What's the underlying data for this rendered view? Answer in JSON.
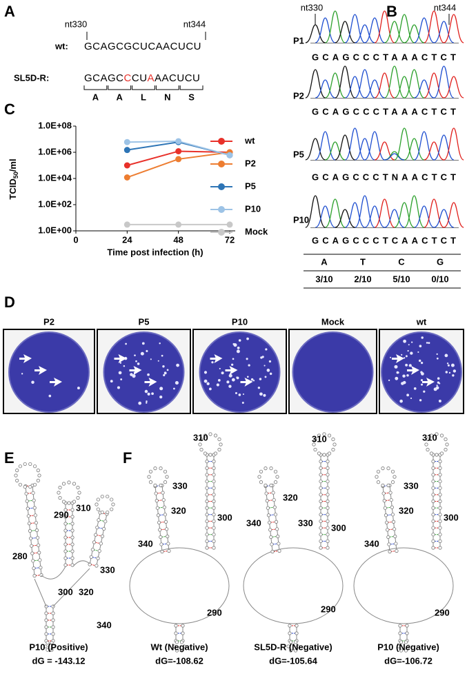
{
  "panel_a": {
    "label": "A",
    "nt_start": "nt330",
    "nt_end": "nt344",
    "wt_label": "wt:",
    "wt_seq": "GCAGCGCUCAACUCU",
    "mut_label": "SL5D-R:",
    "mut_seq": [
      {
        "text": "GCAGC",
        "color": "#000000"
      },
      {
        "text": "C",
        "color": "#e8312a"
      },
      {
        "text": "CU",
        "color": "#000000"
      },
      {
        "text": "A",
        "color": "#e8312a"
      },
      {
        "text": "AACUCU",
        "color": "#000000"
      }
    ],
    "codons": [
      "A",
      "A",
      "L",
      "N",
      "S"
    ]
  },
  "panel_b": {
    "label": "B",
    "nt_start": "nt330",
    "nt_end": "nt344",
    "traces": [
      {
        "name": "P1",
        "seq": "GCAGCCCTAAACTCT"
      },
      {
        "name": "P2",
        "seq": "GCAGCCCTAAACTCT"
      },
      {
        "name": "P5",
        "seq": "GCAGCCCTNAACTCT"
      },
      {
        "name": "P10",
        "seq": "GCAGCCCTCAACTCT"
      }
    ],
    "table": {
      "header": [
        "A",
        "T",
        "C",
        "G"
      ],
      "values": [
        "3/10",
        "2/10",
        "5/10",
        "0/10"
      ]
    }
  },
  "chart_data": {
    "type": "line",
    "label": "C",
    "xlabel": "Time post infection (h)",
    "ylabel": {
      "main": "TCID",
      "sub": "50",
      "rest": "/ml"
    },
    "x": [
      24,
      48,
      72
    ],
    "xlim": [
      0,
      72
    ],
    "xticks": [
      0,
      24,
      48,
      72
    ],
    "log_y": true,
    "ylim": [
      1,
      100000000
    ],
    "yticks": [
      {
        "value": 1,
        "label": "1.0E+00"
      },
      {
        "value": 100,
        "label": "1.0E+02"
      },
      {
        "value": 10000,
        "label": "1.0E+04"
      },
      {
        "value": 1000000,
        "label": "1.0E+06"
      },
      {
        "value": 100000000,
        "label": "1.0E+08"
      }
    ],
    "series": [
      {
        "name": "wt",
        "color": "#e8312a",
        "values": [
          100000,
          1200000,
          1000000
        ]
      },
      {
        "name": "P2",
        "color": "#ed7d31",
        "values": [
          12000,
          300000,
          1000000
        ]
      },
      {
        "name": "P5",
        "color": "#2e75b6",
        "values": [
          1500000,
          6000000,
          600000
        ]
      },
      {
        "name": "P10",
        "color": "#9dc3e6",
        "values": [
          6000000,
          7000000,
          600000
        ]
      },
      {
        "name": "Mock",
        "color": "#c8c8c8",
        "values": [
          3,
          3,
          3
        ]
      }
    ]
  },
  "panel_d": {
    "label": "D",
    "plates": [
      "P2",
      "P5",
      "P10",
      "Mock",
      "wt"
    ]
  },
  "panel_e": {
    "label": "E",
    "positions": [
      "290",
      "310",
      "280",
      "330",
      "300",
      "320",
      "340"
    ],
    "caption": [
      "P10 (Positive)",
      "dG = -143.12"
    ]
  },
  "panel_f": {
    "label": "F",
    "structures": [
      {
        "positions": [
          "310",
          "330",
          "320",
          "300",
          "340",
          "290"
        ],
        "caption": [
          "Wt (Negative)",
          "dG=-108.62"
        ]
      },
      {
        "positions": [
          "310",
          "320",
          "330",
          "340",
          "300",
          "290"
        ],
        "caption": [
          "SL5D-R (Negative)",
          "dG=-105.64"
        ]
      },
      {
        "positions": [
          "310",
          "330",
          "320",
          "300",
          "340",
          "290"
        ],
        "caption": [
          "P10 (Negative)",
          "dG=-106.72"
        ]
      }
    ]
  }
}
